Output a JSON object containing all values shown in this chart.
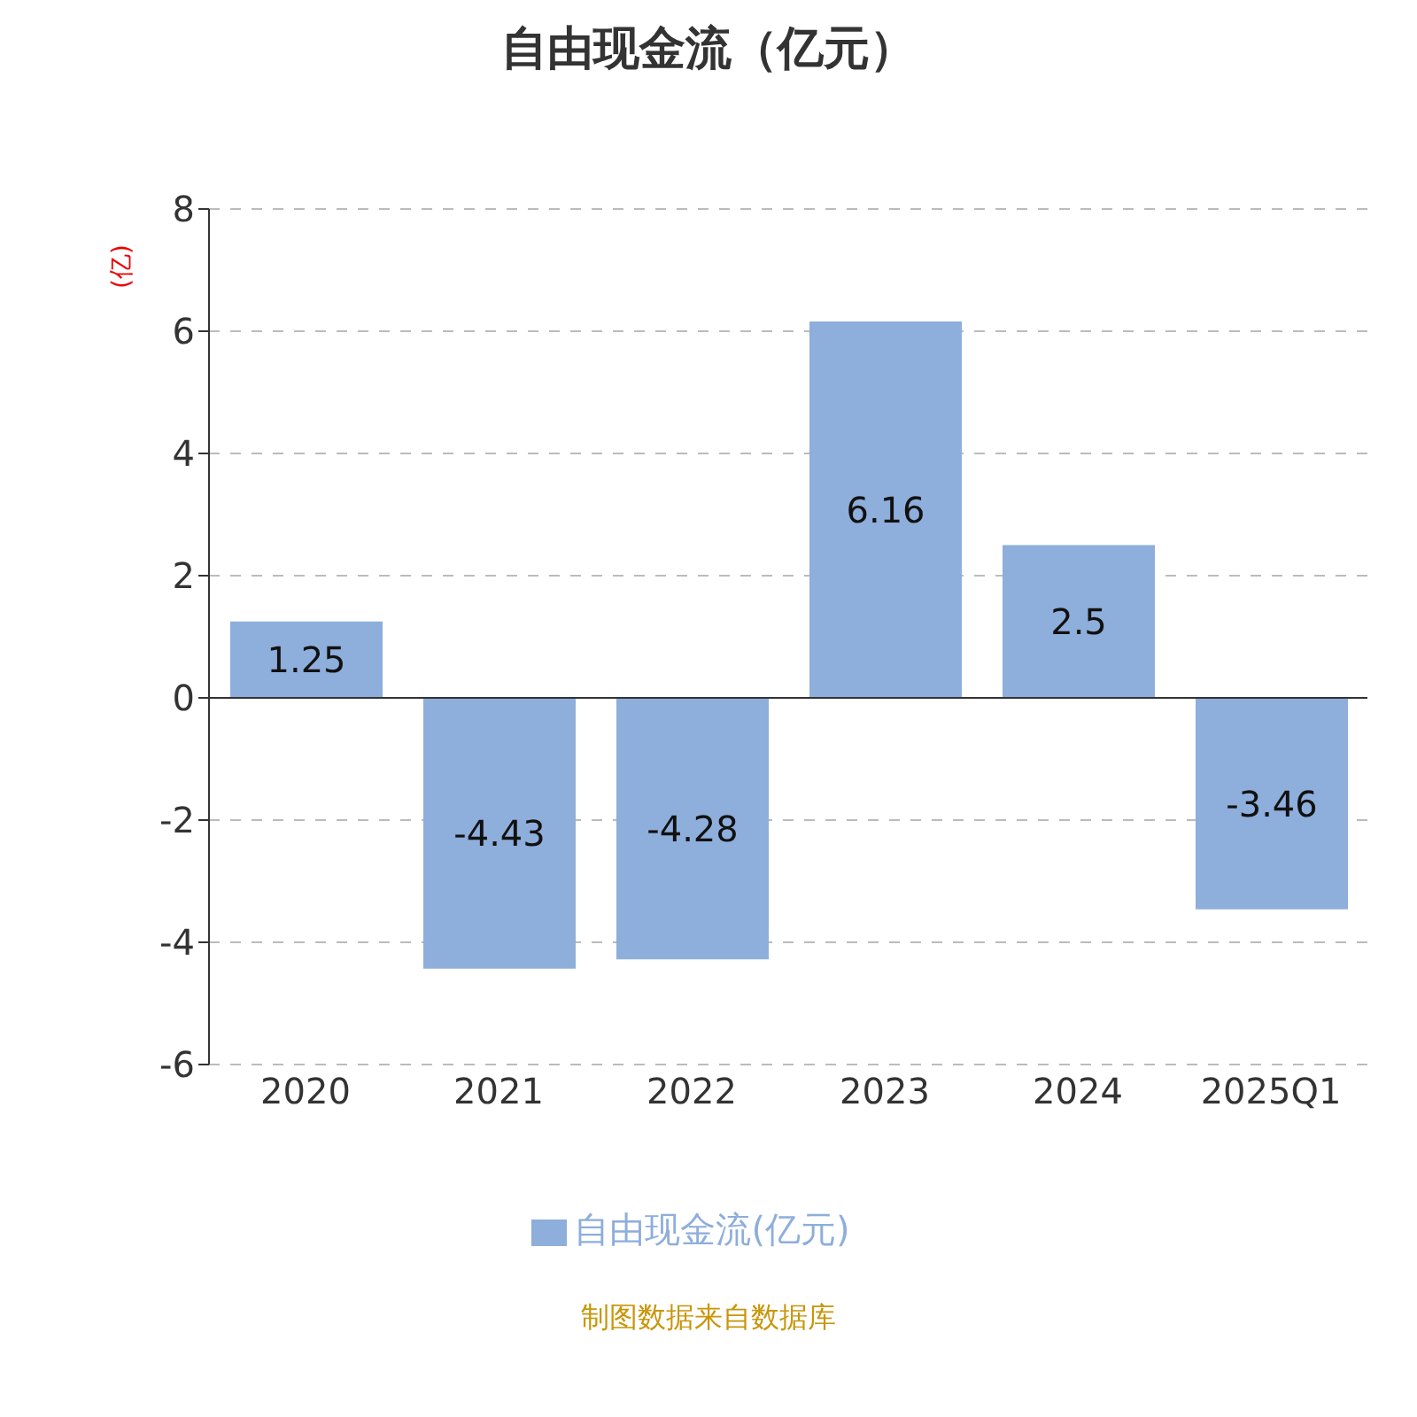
{
  "chart_data": {
    "type": "bar",
    "title": "自由现金流（亿元）",
    "ylabel": "(亿)",
    "categories": [
      "2020",
      "2021",
      "2022",
      "2023",
      "2024",
      "2025Q1"
    ],
    "series": [
      {
        "name": "自由现金流(亿元)",
        "color": "#8eaedb",
        "values": [
          1.25,
          -4.43,
          -4.28,
          6.16,
          2.5,
          -3.46
        ]
      }
    ],
    "ylim": [
      -6,
      8
    ],
    "yticks": [
      -6,
      -4,
      -2,
      0,
      2,
      4,
      6,
      8
    ],
    "grid": "y",
    "legend": "bottom",
    "data_labels": true,
    "annotations": [
      "制图数据来自数据库"
    ]
  }
}
